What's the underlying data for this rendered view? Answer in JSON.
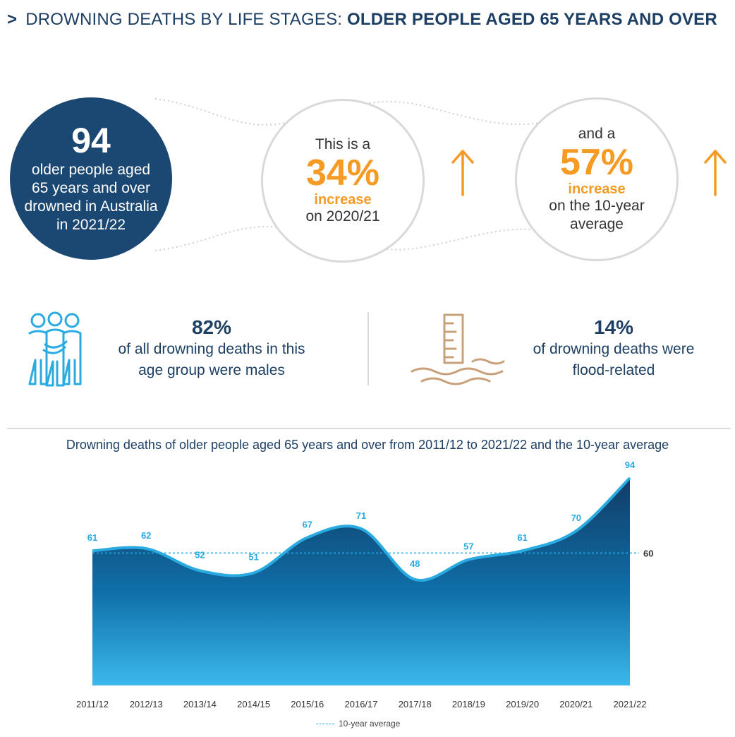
{
  "header": {
    "chevron": ">",
    "prefix": "DROWNING DEATHS BY LIFE STAGES: ",
    "emphasis": "OLDER PEOPLE AGED 65 YEARS AND OVER"
  },
  "headline": {
    "number": "94",
    "line1": "older people aged",
    "line2": "65 years and over",
    "line3": "drowned in Australia",
    "line4": "in 2021/22"
  },
  "increase_prev": {
    "intro": "This is a",
    "percent": "34%",
    "word": "increase",
    "tail": "on 2020/21"
  },
  "increase_avg": {
    "intro": "and a",
    "percent": "57%",
    "word": "increase",
    "tail1": "on the 10-year",
    "tail2": "average"
  },
  "stats": {
    "males": {
      "percent": "82%",
      "line1": "of all drowning deaths in this",
      "line2": "age group were males"
    },
    "flood": {
      "percent": "14%",
      "line1": "of drowning deaths were",
      "line2": "flood-related"
    }
  },
  "icons": {
    "people": "group-of-people-icon",
    "flood": "flood-gauge-icon",
    "arrow": "up-arrow-icon"
  },
  "colors": {
    "navy": "#1b4872",
    "orange": "#f59a22",
    "cyan": "#29abe2"
  },
  "chart_data": {
    "type": "area",
    "title": "Drowning deaths of older people aged 65 years and over from 2011/12 to 2021/22 and the 10-year average",
    "categories": [
      "2011/12",
      "2012/13",
      "2013/14",
      "2014/15",
      "2015/16",
      "2016/17",
      "2017/18",
      "2018/19",
      "2019/20",
      "2020/21",
      "2021/22"
    ],
    "series": [
      {
        "values": [
          61,
          62,
          52,
          51,
          67,
          71,
          48,
          57,
          61,
          70,
          94
        ]
      }
    ],
    "average": {
      "value": 60,
      "label": "60",
      "legend": "10-year average"
    },
    "ylim": [
      0,
      94
    ],
    "grid": false
  }
}
